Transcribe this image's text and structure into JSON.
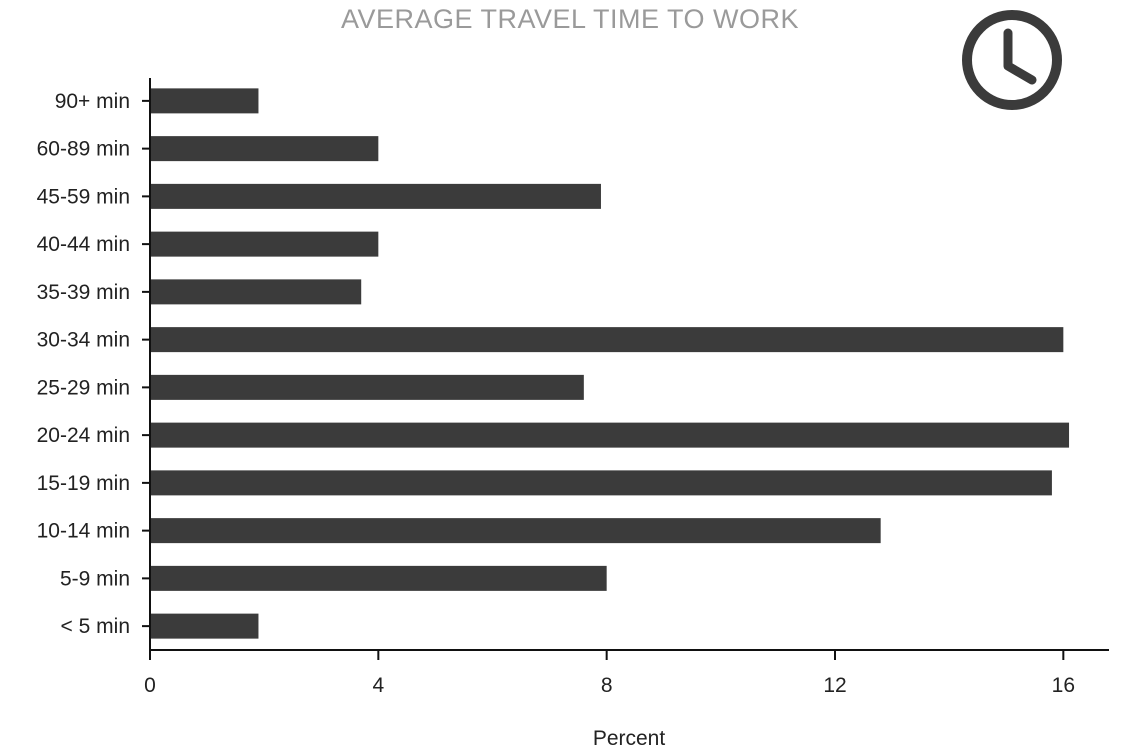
{
  "chart_data": {
    "type": "bar",
    "orientation": "horizontal",
    "title": "AVERAGE TRAVEL TIME TO WORK",
    "xlabel": "Percent",
    "ylabel": "",
    "categories": [
      "< 5 min",
      "5-9 min",
      "10-14 min",
      "15-19 min",
      "20-24 min",
      "25-29 min",
      "30-34 min",
      "35-39 min",
      "40-44 min",
      "45-59 min",
      "60-89 min",
      "90+ min"
    ],
    "values": [
      1.9,
      8.0,
      12.8,
      15.8,
      16.1,
      7.6,
      16.0,
      3.7,
      4.0,
      7.9,
      4.0,
      1.9
    ],
    "xlim": [
      0,
      16.8
    ],
    "xticks": [
      0,
      4,
      8,
      12,
      16
    ],
    "xtick_labels": [
      "0",
      "4",
      "8",
      "12",
      "16"
    ],
    "grid": false,
    "bar_color": "#3b3b3b",
    "title_color": "#9a9a9a",
    "icon": "clock-icon"
  }
}
